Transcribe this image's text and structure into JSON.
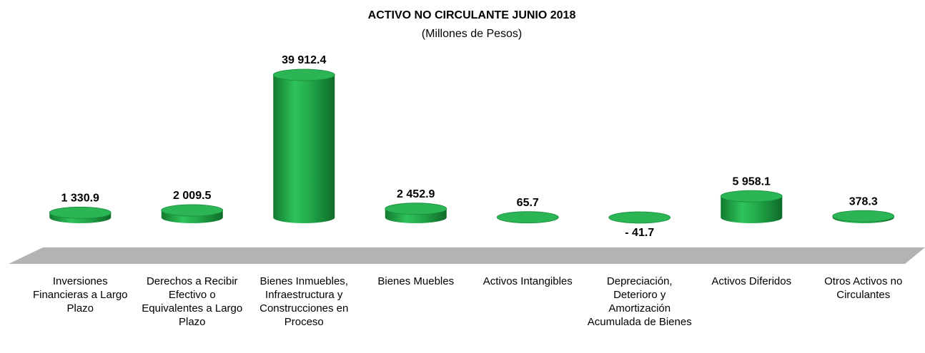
{
  "chart_data": {
    "type": "cylinder-bar",
    "title": "ACTIVO NO CIRCULANTE  JUNIO  2018",
    "subtitle": "(Millones de Pesos)",
    "categories": [
      "Inversiones Financieras a Largo Plazo",
      "Derechos a Recibir Efectivo o Equivalentes a Largo Plazo",
      "Bienes Inmuebles, Infraestructura y Construcciones en Proceso",
      "Bienes Muebles",
      "Activos Intangibles",
      "Depreciación, Deterioro y Amortización Acumulada de Bienes",
      "Activos Diferidos",
      "Otros Activos no Circulantes"
    ],
    "values": [
      1330.9,
      2009.5,
      39912.4,
      2452.9,
      65.7,
      -41.7,
      5958.1,
      378.3
    ],
    "value_labels": [
      "1 330.9",
      "2 009.5",
      "39 912.4",
      "2 452.9",
      "65.7",
      "- 41.7",
      "5 958.1",
      "378.3"
    ],
    "color": "#22a84a"
  }
}
